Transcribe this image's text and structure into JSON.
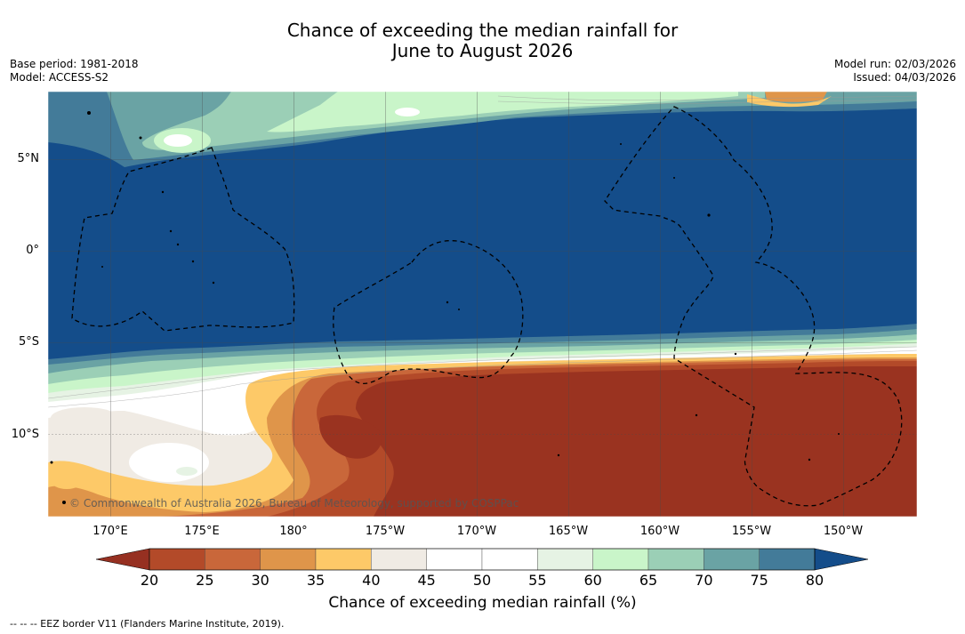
{
  "title_line1": "Chance of exceeding the median rainfall for",
  "title_line2": "June to August 2026",
  "base_period": "Base period: 1981-2018",
  "model": "Model: ACCESS-S2",
  "model_run": "Model run: 02/03/2026",
  "issued": "Issued: 04/03/2026",
  "copyright": "© Commonwealth of Australia 2026, Bureau of Meteorology, supported by COSPPac",
  "lat_labels": [
    "5°N",
    "0°",
    "5°S",
    "10°S"
  ],
  "lon_labels": [
    "170°E",
    "175°E",
    "180°",
    "175°W",
    "170°W",
    "165°W",
    "160°W",
    "155°W",
    "150°W"
  ],
  "colorbar": {
    "title": "Chance of exceeding median rainfall (%)",
    "ticks": [
      "20",
      "25",
      "30",
      "35",
      "40",
      "45",
      "50",
      "55",
      "60",
      "65",
      "70",
      "75",
      "80"
    ],
    "colors": [
      "#9a3320",
      "#b34a29",
      "#c9673a",
      "#df954a",
      "#fdc968",
      "#f0ebe4",
      "#ffffff",
      "#ffffff",
      "#e6f3e4",
      "#c9f5c9",
      "#9bcfb6",
      "#6aa3a4",
      "#437b99"
    ],
    "under_color": "#963021",
    "over_color": "#144d8a"
  },
  "footer": "--  --  -- EEZ border V11 (Flanders Marine Institute, 2019)."
}
